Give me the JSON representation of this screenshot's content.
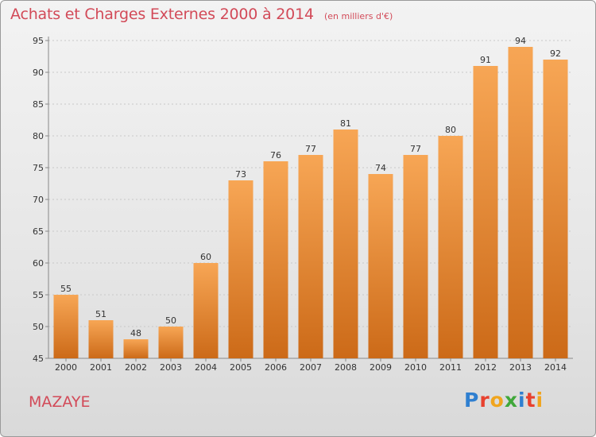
{
  "header": {
    "title": "Achats et Charges Externes 2000 à 2014",
    "subtitle": "(en milliers d'€)"
  },
  "footer": {
    "town": "MAZAYE",
    "brand_letters": [
      "P",
      "r",
      "o",
      "x",
      "i",
      "t",
      "i"
    ],
    "brand_colors": [
      "#2f7fd0",
      "#e8412e",
      "#f0a51e",
      "#40a83a",
      "#2f7fd0",
      "#e8412e",
      "#f0a51e"
    ]
  },
  "colors": {
    "bar_top": "#f7a655",
    "bar_bottom": "#cc6a18",
    "grid": "#c8c8c8"
  },
  "chart_data": {
    "type": "bar",
    "title": "Achats et Charges Externes 2000 à 2014",
    "subtitle": "(en milliers d'€)",
    "categories": [
      "2000",
      "2001",
      "2002",
      "2003",
      "2004",
      "2005",
      "2006",
      "2007",
      "2008",
      "2009",
      "2010",
      "2011",
      "2012",
      "2013",
      "2014"
    ],
    "values": [
      55,
      51,
      48,
      50,
      60,
      73,
      76,
      77,
      81,
      74,
      77,
      80,
      91,
      94,
      92
    ],
    "ylim": [
      45,
      95
    ],
    "yticks": [
      45,
      50,
      55,
      60,
      65,
      70,
      75,
      80,
      85,
      90,
      95
    ],
    "grid": true
  }
}
